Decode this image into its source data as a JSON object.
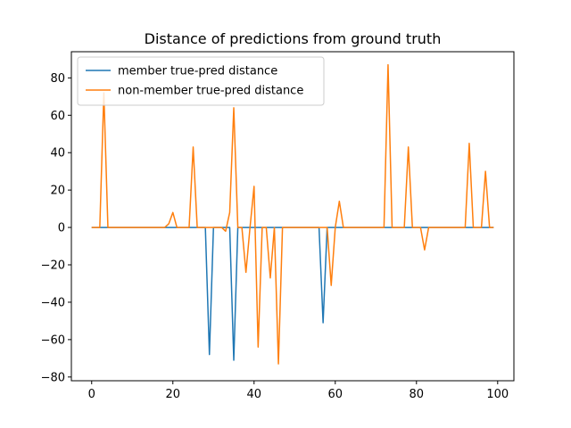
{
  "chart_data": {
    "type": "line",
    "title": "Distance of predictions from ground truth",
    "xlabel": "",
    "ylabel": "",
    "xlim": [
      -5,
      104
    ],
    "ylim": [
      -82,
      94
    ],
    "xticks": [
      0,
      20,
      40,
      60,
      80,
      100
    ],
    "yticks": [
      -80,
      -60,
      -40,
      -20,
      0,
      20,
      40,
      60,
      80
    ],
    "legend_position": "upper-left",
    "grid": false,
    "series": [
      {
        "name": "member true-pred distance",
        "color": "#1f77b4",
        "x": [
          0,
          1,
          2,
          3,
          4,
          5,
          6,
          7,
          8,
          9,
          10,
          11,
          12,
          13,
          14,
          15,
          16,
          17,
          18,
          19,
          20,
          21,
          22,
          23,
          24,
          25,
          26,
          27,
          28,
          29,
          30,
          31,
          32,
          33,
          34,
          35,
          36,
          37,
          38,
          39,
          40,
          41,
          42,
          43,
          44,
          45,
          46,
          47,
          48,
          49,
          50,
          51,
          52,
          53,
          54,
          55,
          56,
          57,
          58,
          59,
          60,
          61,
          62,
          63,
          64,
          65,
          66,
          67,
          68,
          69,
          70,
          71,
          72,
          73,
          74,
          75,
          76,
          77,
          78,
          79,
          80,
          81,
          82,
          83,
          84,
          85,
          86,
          87,
          88,
          89,
          90,
          91,
          92,
          93,
          94,
          95,
          96,
          97,
          98,
          99
        ],
        "values": [
          0,
          0,
          0,
          0,
          0,
          0,
          0,
          0,
          0,
          0,
          0,
          0,
          0,
          0,
          0,
          0,
          0,
          0,
          0,
          0,
          0,
          0,
          0,
          0,
          0,
          0,
          0,
          0,
          0,
          -68,
          0,
          0,
          0,
          0,
          0,
          -71,
          0,
          0,
          0,
          0,
          0,
          0,
          0,
          0,
          0,
          0,
          0,
          0,
          0,
          0,
          0,
          0,
          0,
          0,
          0,
          0,
          0,
          -51,
          0,
          0,
          0,
          0,
          0,
          0,
          0,
          0,
          0,
          0,
          0,
          0,
          0,
          0,
          0,
          0,
          0,
          0,
          0,
          0,
          0,
          0,
          0,
          0,
          0,
          0,
          0,
          0,
          0,
          0,
          0,
          0,
          0,
          0,
          0,
          0,
          0,
          0,
          0,
          0,
          0,
          0
        ]
      },
      {
        "name": "non-member true-pred distance",
        "color": "#ff7f0e",
        "x": [
          0,
          1,
          2,
          3,
          4,
          5,
          6,
          7,
          8,
          9,
          10,
          11,
          12,
          13,
          14,
          15,
          16,
          17,
          18,
          19,
          20,
          21,
          22,
          23,
          24,
          25,
          26,
          27,
          28,
          29,
          30,
          31,
          32,
          33,
          34,
          35,
          36,
          37,
          38,
          39,
          40,
          41,
          42,
          43,
          44,
          45,
          46,
          47,
          48,
          49,
          50,
          51,
          52,
          53,
          54,
          55,
          56,
          57,
          58,
          59,
          60,
          61,
          62,
          63,
          64,
          65,
          66,
          67,
          68,
          69,
          70,
          71,
          72,
          73,
          74,
          75,
          76,
          77,
          78,
          79,
          80,
          81,
          82,
          83,
          84,
          85,
          86,
          87,
          88,
          89,
          90,
          91,
          92,
          93,
          94,
          95,
          96,
          97,
          98,
          99
        ],
        "values": [
          0,
          0,
          0,
          72,
          0,
          0,
          0,
          0,
          0,
          0,
          0,
          0,
          0,
          0,
          0,
          0,
          0,
          0,
          0,
          2,
          8,
          0,
          0,
          0,
          0,
          43,
          0,
          0,
          0,
          0,
          0,
          0,
          0,
          -2,
          8,
          64,
          0,
          0,
          -24,
          0,
          22,
          -64,
          0,
          0,
          -27,
          0,
          -73,
          0,
          0,
          0,
          0,
          0,
          0,
          0,
          0,
          0,
          0,
          0,
          0,
          -31,
          0,
          14,
          0,
          0,
          0,
          0,
          0,
          0,
          0,
          0,
          0,
          0,
          0,
          87,
          0,
          0,
          0,
          0,
          43,
          0,
          0,
          0,
          -12,
          0,
          0,
          0,
          0,
          0,
          0,
          0,
          0,
          0,
          0,
          45,
          0,
          0,
          0,
          30,
          0,
          0
        ]
      }
    ]
  }
}
